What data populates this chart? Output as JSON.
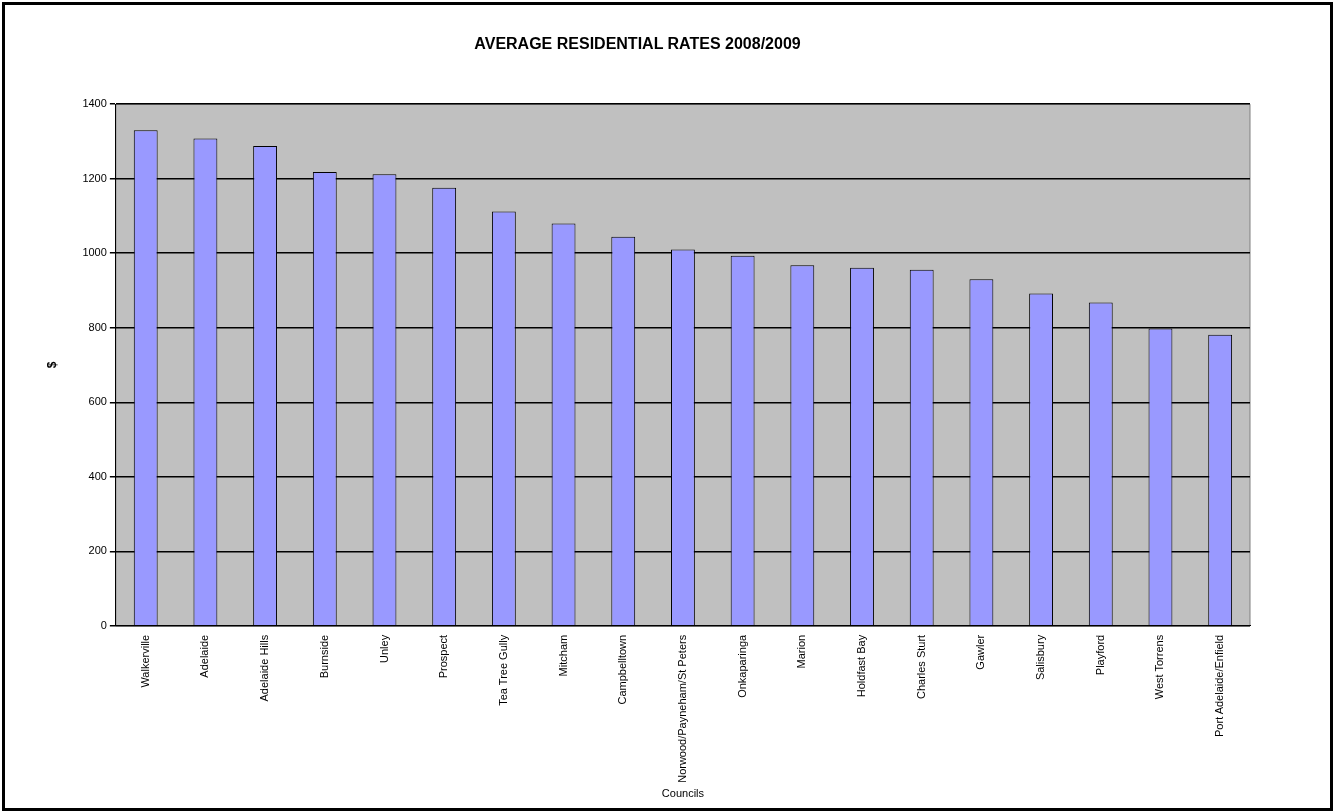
{
  "chart_data": {
    "type": "bar",
    "title": "AVERAGE RESIDENTIAL RATES 2008/2009",
    "xlabel": "Councils",
    "ylabel": "$",
    "categories": [
      "Walkerville",
      "Adelaide",
      "Adelaide Hills",
      "Burnside",
      "Unley",
      "Prospect",
      "Tea Tree Gully",
      "Mitcham",
      "Campbelltown",
      "Norwood/Payneham/St Peters",
      "Onkaparinga",
      "Marion",
      "Holdfast Bay",
      "Charles Sturt",
      "Gawler",
      "Salisbury",
      "Playford",
      "West Torrens",
      "Port Adelaide/Enfield"
    ],
    "values": [
      1330,
      1308,
      1288,
      1218,
      1212,
      1176,
      1112,
      1080,
      1044,
      1010,
      993,
      968,
      961,
      956,
      930,
      892,
      868,
      798,
      781
    ],
    "color": "#9999ff",
    "ylim": [
      0,
      1400
    ],
    "yticks": [
      0,
      200,
      400,
      600,
      800,
      1000,
      1200,
      1400
    ],
    "grid": "y",
    "legend": false
  }
}
